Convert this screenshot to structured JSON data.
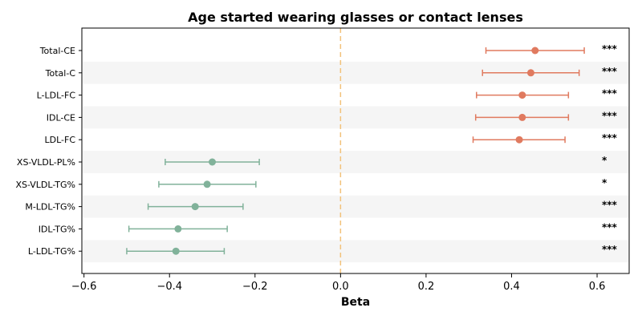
{
  "chart_data": {
    "type": "forest",
    "title": "Age started wearing glasses or contact lenses",
    "xlabel": "Beta",
    "ylabel": "",
    "xlim": [
      -0.605,
      0.675
    ],
    "xticks": [
      -0.6,
      -0.4,
      -0.2,
      0.0,
      0.2,
      0.4,
      0.6
    ],
    "xtick_labels": [
      "−0.6",
      "−0.4",
      "−0.2",
      "0.0",
      "0.2",
      "0.4",
      "0.6"
    ],
    "reference_line": {
      "x": 0.0,
      "color": "#f2c27a",
      "style": "dashed"
    },
    "colors": {
      "positive": "#e07a5f",
      "negative": "#81b29a",
      "band": "#f5f5f5"
    },
    "points": [
      {
        "label": "Total-CE",
        "beta": 0.455,
        "lo": 0.34,
        "hi": 0.57,
        "sig": "***",
        "direction": "positive",
        "band": false
      },
      {
        "label": "Total-C",
        "beta": 0.445,
        "lo": 0.332,
        "hi": 0.558,
        "sig": "***",
        "direction": "positive",
        "band": true
      },
      {
        "label": "L-LDL-FC",
        "beta": 0.425,
        "lo": 0.318,
        "hi": 0.533,
        "sig": "***",
        "direction": "positive",
        "band": false
      },
      {
        "label": "IDL-CE",
        "beta": 0.425,
        "lo": 0.316,
        "hi": 0.533,
        "sig": "***",
        "direction": "positive",
        "band": true
      },
      {
        "label": "LDL-FC",
        "beta": 0.418,
        "lo": 0.31,
        "hi": 0.525,
        "sig": "***",
        "direction": "positive",
        "band": false
      },
      {
        "label": "XS-VLDL-PL%",
        "beta": -0.3,
        "lo": -0.41,
        "hi": -0.19,
        "sig": "*",
        "direction": "negative",
        "band": true
      },
      {
        "label": "XS-VLDL-TG%",
        "beta": -0.312,
        "lo": -0.425,
        "hi": -0.198,
        "sig": "*",
        "direction": "negative",
        "band": false
      },
      {
        "label": "M-LDL-TG%",
        "beta": -0.34,
        "lo": -0.45,
        "hi": -0.228,
        "sig": "***",
        "direction": "negative",
        "band": true
      },
      {
        "label": "IDL-TG%",
        "beta": -0.38,
        "lo": -0.495,
        "hi": -0.265,
        "sig": "***",
        "direction": "negative",
        "band": false
      },
      {
        "label": "L-LDL-TG%",
        "beta": -0.385,
        "lo": -0.5,
        "hi": -0.272,
        "sig": "***",
        "direction": "negative",
        "band": true
      }
    ]
  }
}
